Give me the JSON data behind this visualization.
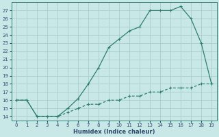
{
  "xlabel": "Humidex (Indice chaleur)",
  "x_upper": [
    0,
    1,
    2,
    3,
    4,
    5,
    6,
    7,
    8,
    9,
    10,
    11,
    12,
    13,
    14,
    15,
    16,
    17,
    18,
    19
  ],
  "y_upper": [
    16,
    16,
    14,
    14,
    14,
    15,
    16.2,
    18,
    20,
    22.5,
    23.5,
    24.5,
    25,
    27,
    27,
    27,
    27.5,
    26,
    23,
    18
  ],
  "x_lower": [
    0,
    1,
    2,
    3,
    4,
    5,
    6,
    7,
    8,
    9,
    10,
    11,
    12,
    13,
    14,
    15,
    16,
    17,
    18,
    19
  ],
  "y_lower": [
    16,
    16,
    14,
    14,
    14,
    14.5,
    15,
    15.5,
    15.5,
    16,
    16,
    16.5,
    16.5,
    17,
    17,
    17.5,
    17.5,
    17.5,
    18,
    18
  ],
  "line_color": "#2e7d6e",
  "bg_color": "#c8e8e8",
  "grid_color": "#aacccc",
  "ylim": [
    13.5,
    28
  ],
  "xlim": [
    -0.5,
    19.5
  ],
  "yticks": [
    14,
    15,
    16,
    17,
    18,
    19,
    20,
    21,
    22,
    23,
    24,
    25,
    26,
    27
  ],
  "xticks": [
    0,
    1,
    2,
    3,
    4,
    5,
    6,
    7,
    8,
    9,
    10,
    11,
    12,
    13,
    14,
    15,
    16,
    17,
    18,
    19
  ],
  "font_color": "#2e4a6b",
  "marker_size": 3.0
}
